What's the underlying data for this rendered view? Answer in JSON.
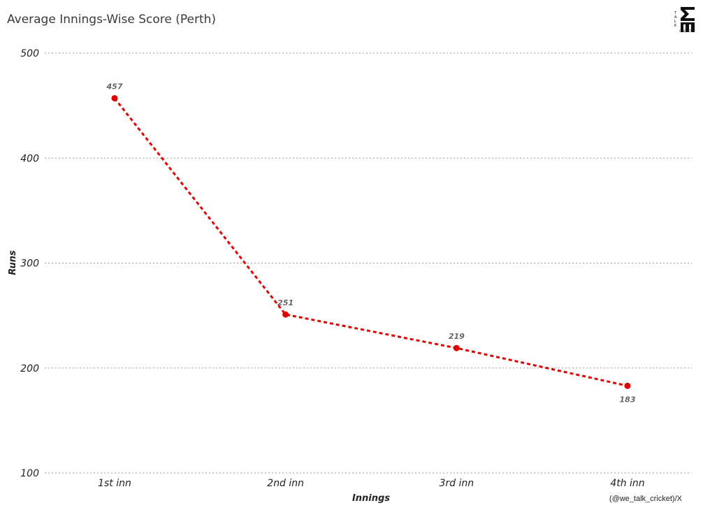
{
  "header": {
    "title": "Average Innings-Wise Score (Perth)",
    "credit": "(@we_talk_cricket)/X",
    "logo_text": "WE TALK CRICKET"
  },
  "colors": {
    "series": "#e00000",
    "grid": "#999999",
    "label": "#666666"
  },
  "chart_data": {
    "type": "line",
    "title": "Average Innings-Wise Score (Perth)",
    "xlabel": "Innings",
    "ylabel": "Runs",
    "categories": [
      "1st inn",
      "2nd inn",
      "3rd inn",
      "4th inn"
    ],
    "series": [
      {
        "values": [
          457,
          251,
          219,
          183
        ]
      }
    ],
    "data_labels": [
      "457",
      "251",
      "219",
      "183"
    ],
    "ylim": [
      100,
      500
    ],
    "yticks": [
      100,
      200,
      300,
      400,
      500
    ],
    "ytick_labels": [
      "100",
      "200",
      "300",
      "400",
      "500"
    ],
    "grid": "horizontal dotted",
    "line_style": "dotted with markers",
    "legend": "none"
  }
}
